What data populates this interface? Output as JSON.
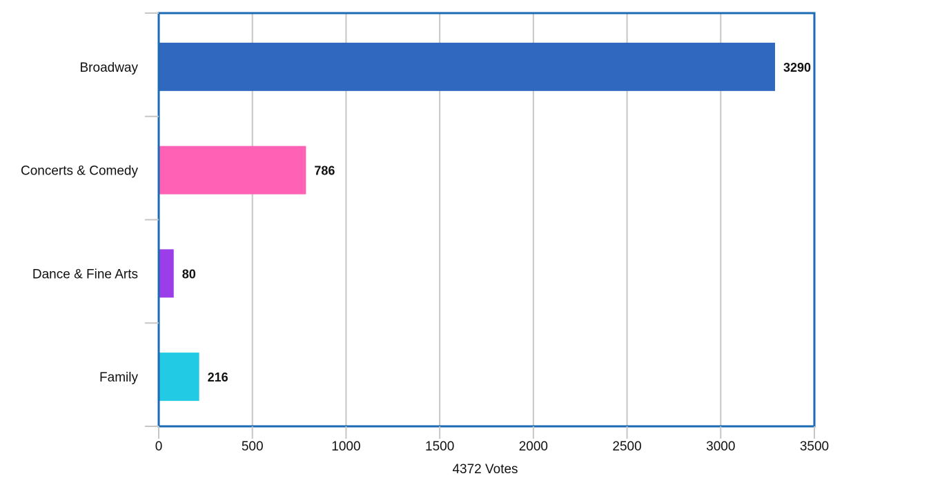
{
  "chart_data": {
    "type": "bar",
    "orientation": "horizontal",
    "categories": [
      "Broadway",
      "Concerts & Comedy",
      "Dance & Fine Arts",
      "Family"
    ],
    "values": [
      3290,
      786,
      80,
      216
    ],
    "bar_colors": [
      "#3068c0",
      "#ff62b4",
      "#9b3de8",
      "#22cbe3"
    ],
    "value_labels": [
      "3290",
      "786",
      "80",
      "216"
    ],
    "xlabel": "4372 Votes",
    "xlim": [
      0,
      3500
    ],
    "x_ticks": [
      "0",
      "500",
      "1000",
      "1500",
      "2000",
      "2500",
      "3000",
      "3500"
    ],
    "grid": "vertical",
    "legend": "none",
    "frame_color": "#1a6ab4",
    "grid_color": "#c6c6c6"
  }
}
